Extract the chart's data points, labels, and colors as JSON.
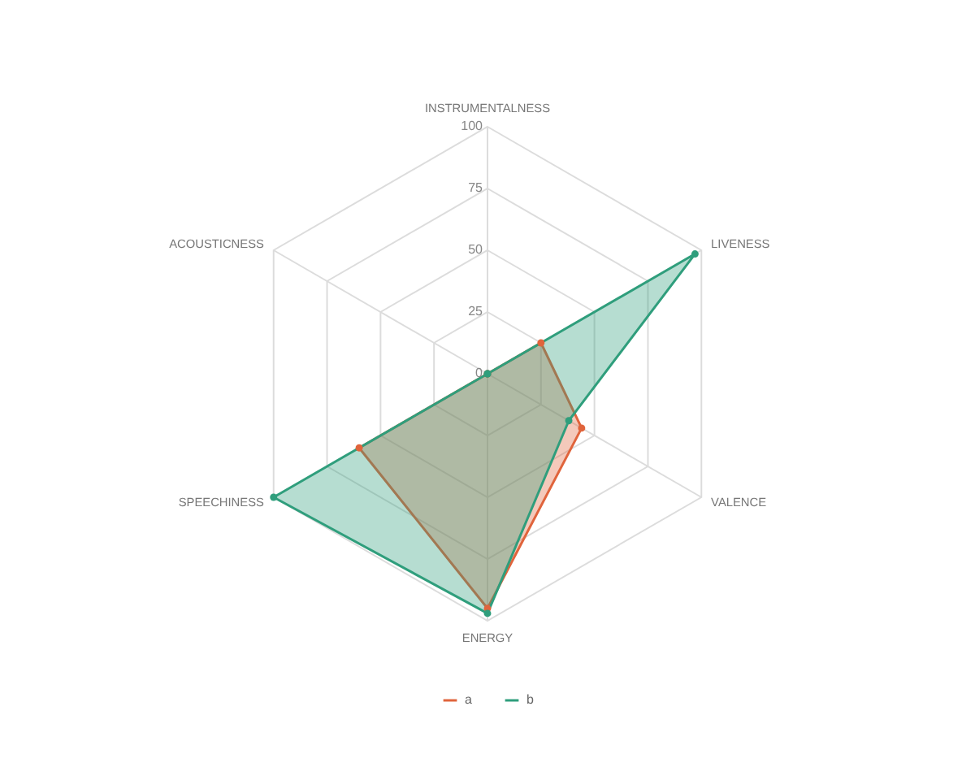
{
  "chart_data": {
    "type": "radar",
    "categories": [
      "INSTRUMENTALNESS",
      "LIVENESS",
      "VALENCE",
      "ENERGY",
      "SPEECHINESS",
      "ACOUSTICNESS"
    ],
    "series": [
      {
        "name": "a",
        "color": "#e0643c",
        "values": [
          0,
          25,
          44,
          95,
          60,
          0
        ]
      },
      {
        "name": "b",
        "color": "#2f9e7c",
        "values": [
          0,
          97,
          38,
          97,
          100,
          0
        ]
      }
    ],
    "ylim": [
      0,
      100
    ],
    "yticks": [
      0,
      25,
      50,
      75,
      100
    ],
    "grid": true,
    "legend": "bottom",
    "marker": "circle"
  }
}
